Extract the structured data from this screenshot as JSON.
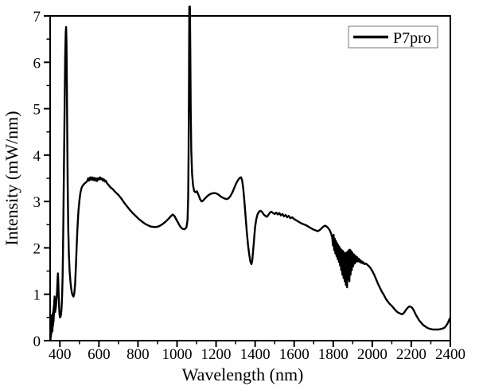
{
  "figure": {
    "background": "#fefefe",
    "frame_color": "#000000",
    "line_color": "#000000"
  },
  "chart_data": {
    "type": "line",
    "title": "",
    "xlabel": "Wavelength (nm)",
    "ylabel": "Intensity (mW/nm)",
    "xlim": [
      350,
      2400
    ],
    "ylim": [
      0,
      7
    ],
    "grid": false,
    "x_major_ticks": [
      400,
      600,
      800,
      1000,
      1200,
      1400,
      1600,
      1800,
      2000,
      2200,
      2400
    ],
    "x_minor_step": 100,
    "y_major_ticks": [
      0,
      1,
      2,
      3,
      4,
      5,
      6,
      7
    ],
    "y_minor_step": 0.5,
    "legend": {
      "position": "top-right",
      "entries": [
        {
          "label": "P7pro",
          "color": "#000000"
        }
      ]
    },
    "series": [
      {
        "name": "P7pro",
        "color": "#000000",
        "points": [
          [
            352,
            0.02
          ],
          [
            353,
            0.25
          ],
          [
            354,
            0.08
          ],
          [
            355,
            0.4
          ],
          [
            356,
            0.15
          ],
          [
            357,
            0.5
          ],
          [
            358,
            0.2
          ],
          [
            359,
            0.55
          ],
          [
            360,
            0.25
          ],
          [
            361,
            0.5
          ],
          [
            362,
            0.2
          ],
          [
            363,
            0.58
          ],
          [
            364,
            0.3
          ],
          [
            365,
            0.62
          ],
          [
            366,
            0.35
          ],
          [
            367,
            0.68
          ],
          [
            368,
            0.42
          ],
          [
            369,
            0.75
          ],
          [
            370,
            0.55
          ],
          [
            371,
            0.88
          ],
          [
            372,
            0.62
          ],
          [
            373,
            0.95
          ],
          [
            374,
            0.7
          ],
          [
            375,
            0.9
          ],
          [
            376,
            0.62
          ],
          [
            377,
            0.82
          ],
          [
            378,
            0.68
          ],
          [
            380,
            0.75
          ],
          [
            382,
            0.88
          ],
          [
            384,
            0.95
          ],
          [
            386,
            1.1
          ],
          [
            388,
            1.3
          ],
          [
            390,
            1.45
          ],
          [
            392,
            1.25
          ],
          [
            394,
            0.95
          ],
          [
            396,
            0.72
          ],
          [
            398,
            0.58
          ],
          [
            400,
            0.5
          ],
          [
            402,
            0.54
          ],
          [
            404,
            0.52
          ],
          [
            406,
            0.58
          ],
          [
            408,
            0.66
          ],
          [
            410,
            0.8
          ],
          [
            412,
            1.05
          ],
          [
            414,
            1.4
          ],
          [
            416,
            1.95
          ],
          [
            418,
            2.7
          ],
          [
            421,
            3.8
          ],
          [
            424,
            5.0
          ],
          [
            427,
            6.1
          ],
          [
            430,
            6.65
          ],
          [
            432,
            6.76
          ],
          [
            434,
            6.4
          ],
          [
            436,
            5.4
          ],
          [
            438,
            4.3
          ],
          [
            440,
            3.3
          ],
          [
            443,
            2.4
          ],
          [
            446,
            1.85
          ],
          [
            450,
            1.5
          ],
          [
            454,
            1.28
          ],
          [
            458,
            1.12
          ],
          [
            462,
            1.02
          ],
          [
            466,
            0.97
          ],
          [
            470,
            0.95
          ],
          [
            474,
            1.02
          ],
          [
            478,
            1.22
          ],
          [
            482,
            1.6
          ],
          [
            486,
            2.05
          ],
          [
            490,
            2.45
          ],
          [
            495,
            2.8
          ],
          [
            500,
            3.02
          ],
          [
            505,
            3.18
          ],
          [
            510,
            3.28
          ],
          [
            515,
            3.33
          ],
          [
            520,
            3.36
          ],
          [
            525,
            3.38
          ],
          [
            530,
            3.4
          ],
          [
            535,
            3.42
          ],
          [
            540,
            3.44
          ],
          [
            545,
            3.5
          ],
          [
            550,
            3.45
          ],
          [
            555,
            3.52
          ],
          [
            560,
            3.47
          ],
          [
            565,
            3.52
          ],
          [
            570,
            3.46
          ],
          [
            575,
            3.51
          ],
          [
            580,
            3.45
          ],
          [
            585,
            3.5
          ],
          [
            590,
            3.44
          ],
          [
            595,
            3.5
          ],
          [
            600,
            3.47
          ],
          [
            605,
            3.52
          ],
          [
            610,
            3.48
          ],
          [
            615,
            3.5
          ],
          [
            620,
            3.45
          ],
          [
            625,
            3.48
          ],
          [
            630,
            3.43
          ],
          [
            635,
            3.45
          ],
          [
            640,
            3.4
          ],
          [
            650,
            3.35
          ],
          [
            660,
            3.3
          ],
          [
            670,
            3.27
          ],
          [
            680,
            3.22
          ],
          [
            690,
            3.18
          ],
          [
            700,
            3.14
          ],
          [
            715,
            3.06
          ],
          [
            730,
            2.97
          ],
          [
            745,
            2.89
          ],
          [
            760,
            2.81
          ],
          [
            775,
            2.74
          ],
          [
            790,
            2.68
          ],
          [
            805,
            2.62
          ],
          [
            820,
            2.57
          ],
          [
            835,
            2.52
          ],
          [
            850,
            2.49
          ],
          [
            865,
            2.46
          ],
          [
            880,
            2.45
          ],
          [
            895,
            2.45
          ],
          [
            910,
            2.47
          ],
          [
            925,
            2.51
          ],
          [
            940,
            2.56
          ],
          [
            955,
            2.62
          ],
          [
            968,
            2.68
          ],
          [
            978,
            2.72
          ],
          [
            988,
            2.68
          ],
          [
            998,
            2.6
          ],
          [
            1008,
            2.52
          ],
          [
            1018,
            2.45
          ],
          [
            1028,
            2.41
          ],
          [
            1038,
            2.4
          ],
          [
            1048,
            2.44
          ],
          [
            1054,
            2.6
          ],
          [
            1057,
            3.1
          ],
          [
            1059,
            4.0
          ],
          [
            1061,
            5.5
          ],
          [
            1063,
            7.2
          ],
          [
            1066,
            7.2
          ],
          [
            1068,
            6.2
          ],
          [
            1070,
            5.0
          ],
          [
            1073,
            4.1
          ],
          [
            1077,
            3.6
          ],
          [
            1082,
            3.35
          ],
          [
            1088,
            3.22
          ],
          [
            1095,
            3.2
          ],
          [
            1102,
            3.22
          ],
          [
            1110,
            3.14
          ],
          [
            1118,
            3.05
          ],
          [
            1126,
            3.0
          ],
          [
            1134,
            3.02
          ],
          [
            1144,
            3.07
          ],
          [
            1156,
            3.12
          ],
          [
            1170,
            3.16
          ],
          [
            1184,
            3.18
          ],
          [
            1198,
            3.18
          ],
          [
            1212,
            3.15
          ],
          [
            1226,
            3.1
          ],
          [
            1240,
            3.07
          ],
          [
            1254,
            3.05
          ],
          [
            1264,
            3.07
          ],
          [
            1274,
            3.12
          ],
          [
            1284,
            3.2
          ],
          [
            1294,
            3.3
          ],
          [
            1304,
            3.4
          ],
          [
            1314,
            3.47
          ],
          [
            1322,
            3.51
          ],
          [
            1328,
            3.52
          ],
          [
            1334,
            3.45
          ],
          [
            1340,
            3.25
          ],
          [
            1346,
            2.95
          ],
          [
            1352,
            2.62
          ],
          [
            1358,
            2.32
          ],
          [
            1364,
            2.05
          ],
          [
            1370,
            1.85
          ],
          [
            1376,
            1.7
          ],
          [
            1381,
            1.65
          ],
          [
            1385,
            1.72
          ],
          [
            1390,
            1.95
          ],
          [
            1395,
            2.2
          ],
          [
            1400,
            2.45
          ],
          [
            1406,
            2.62
          ],
          [
            1412,
            2.72
          ],
          [
            1420,
            2.78
          ],
          [
            1428,
            2.8
          ],
          [
            1436,
            2.77
          ],
          [
            1444,
            2.72
          ],
          [
            1452,
            2.69
          ],
          [
            1460,
            2.67
          ],
          [
            1468,
            2.71
          ],
          [
            1476,
            2.76
          ],
          [
            1484,
            2.78
          ],
          [
            1492,
            2.75
          ],
          [
            1500,
            2.73
          ],
          [
            1508,
            2.76
          ],
          [
            1516,
            2.72
          ],
          [
            1524,
            2.75
          ],
          [
            1532,
            2.7
          ],
          [
            1540,
            2.73
          ],
          [
            1548,
            2.68
          ],
          [
            1556,
            2.71
          ],
          [
            1564,
            2.66
          ],
          [
            1572,
            2.69
          ],
          [
            1580,
            2.64
          ],
          [
            1590,
            2.66
          ],
          [
            1600,
            2.62
          ],
          [
            1612,
            2.59
          ],
          [
            1624,
            2.56
          ],
          [
            1636,
            2.53
          ],
          [
            1648,
            2.51
          ],
          [
            1660,
            2.49
          ],
          [
            1672,
            2.46
          ],
          [
            1684,
            2.43
          ],
          [
            1696,
            2.4
          ],
          [
            1708,
            2.38
          ],
          [
            1720,
            2.36
          ],
          [
            1730,
            2.38
          ],
          [
            1740,
            2.42
          ],
          [
            1750,
            2.46
          ],
          [
            1758,
            2.48
          ],
          [
            1766,
            2.46
          ],
          [
            1774,
            2.43
          ],
          [
            1782,
            2.38
          ],
          [
            1790,
            2.3
          ],
          [
            1795,
            2.22
          ],
          [
            1799,
            2.05
          ],
          [
            1802,
            2.28
          ],
          [
            1805,
            1.95
          ],
          [
            1808,
            2.2
          ],
          [
            1811,
            1.88
          ],
          [
            1814,
            2.15
          ],
          [
            1817,
            1.82
          ],
          [
            1820,
            2.1
          ],
          [
            1823,
            1.76
          ],
          [
            1826,
            2.06
          ],
          [
            1829,
            1.7
          ],
          [
            1832,
            2.02
          ],
          [
            1835,
            1.62
          ],
          [
            1838,
            1.98
          ],
          [
            1841,
            1.52
          ],
          [
            1844,
            1.95
          ],
          [
            1847,
            1.42
          ],
          [
            1850,
            1.93
          ],
          [
            1853,
            1.35
          ],
          [
            1856,
            1.9
          ],
          [
            1859,
            1.28
          ],
          [
            1862,
            1.88
          ],
          [
            1865,
            1.2
          ],
          [
            1868,
            1.9
          ],
          [
            1871,
            1.15
          ],
          [
            1874,
            1.92
          ],
          [
            1877,
            1.32
          ],
          [
            1880,
            1.95
          ],
          [
            1883,
            1.28
          ],
          [
            1886,
            1.96
          ],
          [
            1889,
            1.42
          ],
          [
            1892,
            1.93
          ],
          [
            1895,
            1.52
          ],
          [
            1898,
            1.9
          ],
          [
            1902,
            1.6
          ],
          [
            1906,
            1.86
          ],
          [
            1910,
            1.66
          ],
          [
            1914,
            1.83
          ],
          [
            1918,
            1.7
          ],
          [
            1922,
            1.8
          ],
          [
            1926,
            1.71
          ],
          [
            1930,
            1.77
          ],
          [
            1934,
            1.7
          ],
          [
            1938,
            1.74
          ],
          [
            1942,
            1.68
          ],
          [
            1946,
            1.71
          ],
          [
            1950,
            1.67
          ],
          [
            1955,
            1.69
          ],
          [
            1960,
            1.65
          ],
          [
            1968,
            1.66
          ],
          [
            1976,
            1.63
          ],
          [
            1984,
            1.6
          ],
          [
            1992,
            1.56
          ],
          [
            2000,
            1.5
          ],
          [
            2010,
            1.42
          ],
          [
            2020,
            1.32
          ],
          [
            2030,
            1.22
          ],
          [
            2040,
            1.13
          ],
          [
            2050,
            1.05
          ],
          [
            2060,
            0.98
          ],
          [
            2070,
            0.9
          ],
          [
            2080,
            0.84
          ],
          [
            2090,
            0.79
          ],
          [
            2100,
            0.75
          ],
          [
            2110,
            0.7
          ],
          [
            2120,
            0.65
          ],
          [
            2130,
            0.61
          ],
          [
            2140,
            0.59
          ],
          [
            2150,
            0.57
          ],
          [
            2158,
            0.58
          ],
          [
            2166,
            0.62
          ],
          [
            2174,
            0.67
          ],
          [
            2182,
            0.71
          ],
          [
            2190,
            0.74
          ],
          [
            2198,
            0.73
          ],
          [
            2206,
            0.7
          ],
          [
            2214,
            0.64
          ],
          [
            2222,
            0.57
          ],
          [
            2230,
            0.51
          ],
          [
            2240,
            0.44
          ],
          [
            2250,
            0.39
          ],
          [
            2260,
            0.34
          ],
          [
            2270,
            0.31
          ],
          [
            2280,
            0.28
          ],
          [
            2290,
            0.26
          ],
          [
            2300,
            0.25
          ],
          [
            2310,
            0.24
          ],
          [
            2320,
            0.24
          ],
          [
            2330,
            0.24
          ],
          [
            2340,
            0.24
          ],
          [
            2350,
            0.25
          ],
          [
            2360,
            0.26
          ],
          [
            2370,
            0.28
          ],
          [
            2380,
            0.33
          ],
          [
            2388,
            0.39
          ],
          [
            2394,
            0.45
          ],
          [
            2398,
            0.48
          ]
        ]
      }
    ]
  }
}
